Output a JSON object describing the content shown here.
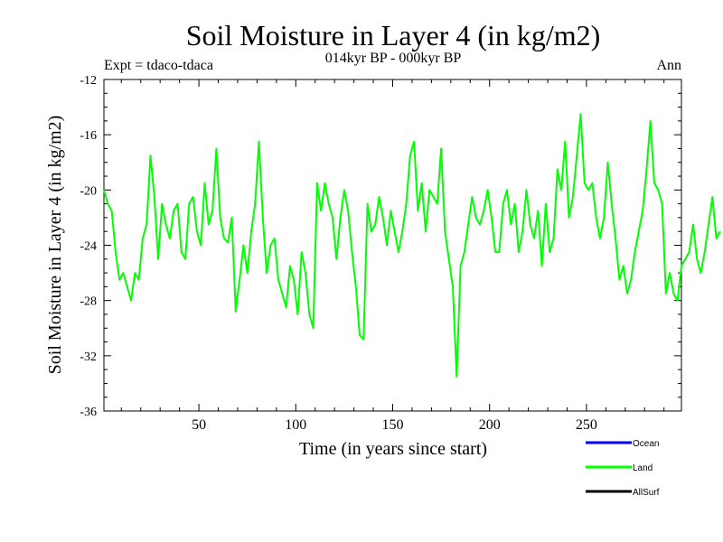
{
  "chart_data": {
    "type": "line",
    "title": "Soil Moisture in Layer 4 (in kg/m2)",
    "subtitle": "014kyr BP - 000kyr BP",
    "left_note": "Expt = tdaco-tdaca",
    "right_note": "Ann",
    "xlabel": "Time (in years since start)",
    "ylabel": "Soil Moisture in Layer 4 (in kg/m2)",
    "xlim": [
      1,
      299
    ],
    "ylim": [
      -36,
      -12
    ],
    "xticks": [
      50,
      100,
      150,
      200,
      250
    ],
    "xtick_labels": [
      "50",
      "100",
      "150",
      "200",
      "250"
    ],
    "yticks": [
      -12,
      -16,
      -20,
      -24,
      -28,
      -32,
      -36
    ],
    "ytick_labels": [
      "-12",
      "-16",
      "-20",
      "-24",
      "-28",
      "-32",
      "-36"
    ],
    "legend": [
      {
        "label": "Ocean",
        "color": "#0000ff"
      },
      {
        "label": "Land",
        "color": "#00ff00"
      },
      {
        "label": "AllSurf",
        "color": "#000000"
      }
    ],
    "series": [
      {
        "name": "Land",
        "color": "#00ff00",
        "x_start": 1,
        "x_step": 2,
        "values": [
          -20.0,
          -21.0,
          -21.5,
          -24.5,
          -26.5,
          -26.0,
          -27.0,
          -28.0,
          -26.0,
          -26.5,
          -23.5,
          -22.5,
          -17.5,
          -20.5,
          -25.0,
          -21.0,
          -22.5,
          -23.5,
          -21.5,
          -21.0,
          -24.5,
          -25.0,
          -21.0,
          -20.5,
          -23.0,
          -24.0,
          -19.5,
          -22.5,
          -21.5,
          -17.0,
          -22.0,
          -23.5,
          -23.8,
          -22.0,
          -28.8,
          -26.5,
          -24.0,
          -26.0,
          -23.0,
          -21.0,
          -16.5,
          -22.0,
          -26.0,
          -24.0,
          -23.5,
          -26.5,
          -27.5,
          -28.5,
          -25.5,
          -26.5,
          -29.0,
          -24.5,
          -26.0,
          -29.0,
          -30.0,
          -19.5,
          -21.5,
          -19.5,
          -21.0,
          -22.0,
          -25.0,
          -22.0,
          -20.0,
          -21.5,
          -24.5,
          -27.0,
          -30.5,
          -30.8,
          -21.0,
          -23.0,
          -22.5,
          -20.5,
          -22.0,
          -24.0,
          -21.5,
          -23.0,
          -24.5,
          -23.0,
          -21.0,
          -17.5,
          -16.5,
          -21.5,
          -19.5,
          -23.0,
          -20.0,
          -20.5,
          -21.0,
          -17.0,
          -23.0,
          -25.0,
          -27.0,
          -33.5,
          -25.5,
          -24.5,
          -22.5,
          -20.5,
          -22.0,
          -22.5,
          -21.5,
          -20.0,
          -22.0,
          -24.5,
          -24.5,
          -21.0,
          -20.0,
          -22.5,
          -21.0,
          -24.5,
          -23.0,
          -20.0,
          -22.5,
          -23.5,
          -21.5,
          -25.5,
          -21.0,
          -24.5,
          -23.5,
          -18.5,
          -20.0,
          -16.5,
          -22.0,
          -20.5,
          -17.5,
          -14.5,
          -19.5,
          -20.0,
          -19.5,
          -22.0,
          -23.5,
          -22.0,
          -18.0,
          -21.0,
          -23.5,
          -26.5,
          -25.5,
          -27.5,
          -26.5,
          -24.5,
          -23.0,
          -21.5,
          -18.5,
          -15.0,
          -19.5,
          -20.0,
          -21.0,
          -27.5,
          -26.0,
          -27.5,
          -28.0,
          -25.5,
          -25.0,
          -24.5,
          -22.5,
          -25.0,
          -26.0,
          -24.5,
          -22.5,
          -20.5,
          -23.5,
          -23.0
        ]
      }
    ]
  }
}
